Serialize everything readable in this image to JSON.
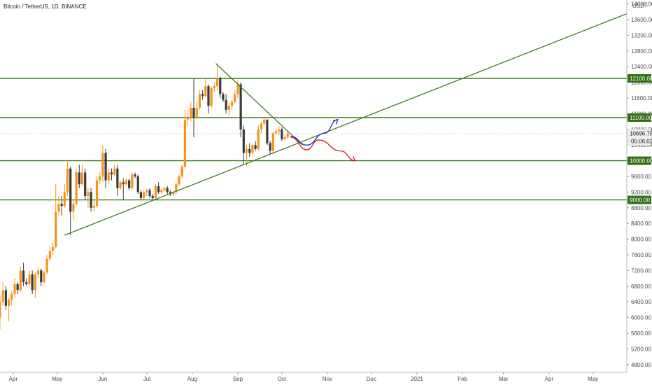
{
  "header": {
    "title": "Bitcoin / TetherUS, 1D, BINANCE"
  },
  "price_axis": {
    "currency": "USDT"
  },
  "colors": {
    "up": "#f7931a",
    "down": "#3a3a3a",
    "line": "#3c7d1c",
    "tag": "#2f6f14",
    "blue": "#1c2fbf",
    "red": "#d01818"
  },
  "chart_data": {
    "type": "candlestick",
    "title": "Bitcoin / TetherUS, 1D, BINANCE",
    "y_unit": "USDT",
    "ylim": [
      4600,
      14100
    ],
    "y_ticks": [
      4800,
      5200,
      5600,
      6000,
      6400,
      6800,
      7200,
      7600,
      8000,
      8400,
      8800,
      9200,
      9600,
      10000,
      10400,
      10800,
      11200,
      11600,
      12000,
      12400,
      12800,
      13200,
      13600,
      14000
    ],
    "x_ticks": [
      "Apr",
      "May",
      "Jun",
      "Jul",
      "Aug",
      "Sep",
      "Oct",
      "Nov",
      "Dec",
      "2021",
      "Feb",
      "Mar",
      "Apr",
      "May"
    ],
    "x_tick_dates": [
      "2020-04-01",
      "2020-05-01",
      "2020-06-01",
      "2020-07-01",
      "2020-08-01",
      "2020-09-01",
      "2020-10-01",
      "2020-11-01",
      "2020-12-01",
      "2021-01-01",
      "2021-02-01",
      "2021-03-01",
      "2021-04-01",
      "2021-05-01"
    ],
    "xlim": [
      "2020-03-23",
      "2021-05-24"
    ],
    "grid": false,
    "last_price": {
      "value": 10696.78,
      "label": "10696.78",
      "countdown": "05:06:02"
    },
    "horizontal_levels": [
      {
        "value": 12100,
        "label": "12100.00"
      },
      {
        "value": 11100,
        "label": "11100.00"
      },
      {
        "value": 10000,
        "label": "10000.00"
      },
      {
        "value": 9000,
        "label": "9000.00"
      }
    ],
    "trendlines": [
      {
        "name": "support",
        "from": [
          "2020-05-06",
          8100
        ],
        "to": [
          "2021-05-24",
          13750
        ]
      },
      {
        "name": "resistance",
        "from": [
          "2020-08-17",
          12480
        ],
        "to": [
          "2020-10-15",
          10400
        ]
      }
    ],
    "scenarios": [
      {
        "name": "bullish",
        "points": [
          [
            "2020-10-07",
            10620
          ],
          [
            "2020-10-18",
            10400
          ],
          [
            "2020-10-30",
            10700
          ],
          [
            "2020-11-08",
            11050
          ]
        ]
      },
      {
        "name": "bearish",
        "points": [
          [
            "2020-10-07",
            10600
          ],
          [
            "2020-10-18",
            10280
          ],
          [
            "2020-10-26",
            10530
          ],
          [
            "2020-11-10",
            10250
          ],
          [
            "2020-11-20",
            10000
          ]
        ]
      }
    ],
    "candles": [
      {
        "d": "2020-03-23",
        "o": 6000,
        "h": 6550,
        "l": 5700,
        "c": 6400
      },
      {
        "d": "2020-03-25",
        "o": 6400,
        "h": 6900,
        "l": 6300,
        "c": 6700
      },
      {
        "d": "2020-03-27",
        "o": 6700,
        "h": 6800,
        "l": 6200,
        "c": 6300
      },
      {
        "d": "2020-03-29",
        "o": 6300,
        "h": 6500,
        "l": 5900,
        "c": 6450
      },
      {
        "d": "2020-03-31",
        "o": 6450,
        "h": 6700,
        "l": 6300,
        "c": 6600
      },
      {
        "d": "2020-04-02",
        "o": 6600,
        "h": 7000,
        "l": 6500,
        "c": 6850
      },
      {
        "d": "2020-04-04",
        "o": 6850,
        "h": 6900,
        "l": 6600,
        "c": 6700
      },
      {
        "d": "2020-04-06",
        "o": 6700,
        "h": 7300,
        "l": 6650,
        "c": 7200
      },
      {
        "d": "2020-04-08",
        "o": 7200,
        "h": 7400,
        "l": 6800,
        "c": 6900
      },
      {
        "d": "2020-04-10",
        "o": 6900,
        "h": 7000,
        "l": 6800,
        "c": 6850
      },
      {
        "d": "2020-04-12",
        "o": 6850,
        "h": 7200,
        "l": 6800,
        "c": 7100
      },
      {
        "d": "2020-04-14",
        "o": 7100,
        "h": 7200,
        "l": 6600,
        "c": 6700
      },
      {
        "d": "2020-04-16",
        "o": 6700,
        "h": 7150,
        "l": 6500,
        "c": 7100
      },
      {
        "d": "2020-04-18",
        "o": 7100,
        "h": 7300,
        "l": 7000,
        "c": 7200
      },
      {
        "d": "2020-04-20",
        "o": 7200,
        "h": 7250,
        "l": 6800,
        "c": 6900
      },
      {
        "d": "2020-04-22",
        "o": 6900,
        "h": 7200,
        "l": 6850,
        "c": 7150
      },
      {
        "d": "2020-04-24",
        "o": 7150,
        "h": 7600,
        "l": 7100,
        "c": 7500
      },
      {
        "d": "2020-04-26",
        "o": 7500,
        "h": 7800,
        "l": 7450,
        "c": 7700
      },
      {
        "d": "2020-04-28",
        "o": 7700,
        "h": 7900,
        "l": 7600,
        "c": 7800
      },
      {
        "d": "2020-04-30",
        "o": 7800,
        "h": 9400,
        "l": 7750,
        "c": 8700
      },
      {
        "d": "2020-05-02",
        "o": 8700,
        "h": 9100,
        "l": 8600,
        "c": 8900
      },
      {
        "d": "2020-05-04",
        "o": 8900,
        "h": 9100,
        "l": 8600,
        "c": 8850
      },
      {
        "d": "2020-05-06",
        "o": 8850,
        "h": 9400,
        "l": 8800,
        "c": 9200
      },
      {
        "d": "2020-05-08",
        "o": 9200,
        "h": 10000,
        "l": 9100,
        "c": 9800
      },
      {
        "d": "2020-05-10",
        "o": 9800,
        "h": 9850,
        "l": 8100,
        "c": 8700
      },
      {
        "d": "2020-05-12",
        "o": 8700,
        "h": 9000,
        "l": 8500,
        "c": 8900
      },
      {
        "d": "2020-05-14",
        "o": 8900,
        "h": 9800,
        "l": 8850,
        "c": 9700
      },
      {
        "d": "2020-05-16",
        "o": 9700,
        "h": 9900,
        "l": 9300,
        "c": 9400
      },
      {
        "d": "2020-05-18",
        "o": 9400,
        "h": 9900,
        "l": 9350,
        "c": 9700
      },
      {
        "d": "2020-05-20",
        "o": 9700,
        "h": 9800,
        "l": 9000,
        "c": 9100
      },
      {
        "d": "2020-05-22",
        "o": 9100,
        "h": 9300,
        "l": 8800,
        "c": 9200
      },
      {
        "d": "2020-05-24",
        "o": 9200,
        "h": 9300,
        "l": 8700,
        "c": 8800
      },
      {
        "d": "2020-05-26",
        "o": 8800,
        "h": 9000,
        "l": 8700,
        "c": 8850
      },
      {
        "d": "2020-05-28",
        "o": 8850,
        "h": 9600,
        "l": 8800,
        "c": 9500
      },
      {
        "d": "2020-05-30",
        "o": 9500,
        "h": 9700,
        "l": 9400,
        "c": 9600
      },
      {
        "d": "2020-06-01",
        "o": 9600,
        "h": 10400,
        "l": 9450,
        "c": 10200
      },
      {
        "d": "2020-06-03",
        "o": 10200,
        "h": 10300,
        "l": 9300,
        "c": 9500
      },
      {
        "d": "2020-06-05",
        "o": 9500,
        "h": 9800,
        "l": 9400,
        "c": 9700
      },
      {
        "d": "2020-06-07",
        "o": 9700,
        "h": 9800,
        "l": 9500,
        "c": 9650
      },
      {
        "d": "2020-06-09",
        "o": 9650,
        "h": 9900,
        "l": 9600,
        "c": 9800
      },
      {
        "d": "2020-06-11",
        "o": 9800,
        "h": 9900,
        "l": 9100,
        "c": 9300
      },
      {
        "d": "2020-06-13",
        "o": 9300,
        "h": 9500,
        "l": 9250,
        "c": 9450
      },
      {
        "d": "2020-06-15",
        "o": 9450,
        "h": 9550,
        "l": 9000,
        "c": 9400
      },
      {
        "d": "2020-06-17",
        "o": 9400,
        "h": 9550,
        "l": 9350,
        "c": 9500
      },
      {
        "d": "2020-06-19",
        "o": 9500,
        "h": 9550,
        "l": 9250,
        "c": 9300
      },
      {
        "d": "2020-06-21",
        "o": 9300,
        "h": 9700,
        "l": 9250,
        "c": 9650
      },
      {
        "d": "2020-06-23",
        "o": 9650,
        "h": 9700,
        "l": 9550,
        "c": 9600
      },
      {
        "d": "2020-06-25",
        "o": 9600,
        "h": 9650,
        "l": 9150,
        "c": 9200
      },
      {
        "d": "2020-06-27",
        "o": 9200,
        "h": 9250,
        "l": 9000,
        "c": 9050
      },
      {
        "d": "2020-06-29",
        "o": 9050,
        "h": 9250,
        "l": 9000,
        "c": 9200
      },
      {
        "d": "2020-07-01",
        "o": 9200,
        "h": 9300,
        "l": 9100,
        "c": 9250
      },
      {
        "d": "2020-07-03",
        "o": 9250,
        "h": 9300,
        "l": 9050,
        "c": 9100
      },
      {
        "d": "2020-07-05",
        "o": 9100,
        "h": 9150,
        "l": 9000,
        "c": 9050
      },
      {
        "d": "2020-07-07",
        "o": 9050,
        "h": 9400,
        "l": 9000,
        "c": 9350
      },
      {
        "d": "2020-07-09",
        "o": 9350,
        "h": 9450,
        "l": 9150,
        "c": 9200
      },
      {
        "d": "2020-07-11",
        "o": 9200,
        "h": 9300,
        "l": 9150,
        "c": 9250
      },
      {
        "d": "2020-07-13",
        "o": 9250,
        "h": 9350,
        "l": 9200,
        "c": 9300
      },
      {
        "d": "2020-07-15",
        "o": 9300,
        "h": 9350,
        "l": 9150,
        "c": 9200
      },
      {
        "d": "2020-07-17",
        "o": 9200,
        "h": 9250,
        "l": 9100,
        "c": 9150
      },
      {
        "d": "2020-07-19",
        "o": 9150,
        "h": 9250,
        "l": 9100,
        "c": 9200
      },
      {
        "d": "2020-07-21",
        "o": 9200,
        "h": 9450,
        "l": 9150,
        "c": 9400
      },
      {
        "d": "2020-07-23",
        "o": 9400,
        "h": 9650,
        "l": 9350,
        "c": 9600
      },
      {
        "d": "2020-07-25",
        "o": 9600,
        "h": 9900,
        "l": 9550,
        "c": 9850
      },
      {
        "d": "2020-07-27",
        "o": 9850,
        "h": 11300,
        "l": 9800,
        "c": 11050
      },
      {
        "d": "2020-07-29",
        "o": 11050,
        "h": 11300,
        "l": 10900,
        "c": 11100
      },
      {
        "d": "2020-07-31",
        "o": 11100,
        "h": 11500,
        "l": 11000,
        "c": 11350
      },
      {
        "d": "2020-08-02",
        "o": 11350,
        "h": 12100,
        "l": 10600,
        "c": 11100
      },
      {
        "d": "2020-08-04",
        "o": 11100,
        "h": 11500,
        "l": 11050,
        "c": 11350
      },
      {
        "d": "2020-08-06",
        "o": 11350,
        "h": 11800,
        "l": 11300,
        "c": 11700
      },
      {
        "d": "2020-08-08",
        "o": 11700,
        "h": 11800,
        "l": 11550,
        "c": 11650
      },
      {
        "d": "2020-08-10",
        "o": 11650,
        "h": 12100,
        "l": 11600,
        "c": 11900
      },
      {
        "d": "2020-08-12",
        "o": 11900,
        "h": 11950,
        "l": 11200,
        "c": 11400
      },
      {
        "d": "2020-08-14",
        "o": 11400,
        "h": 11900,
        "l": 11350,
        "c": 11850
      },
      {
        "d": "2020-08-16",
        "o": 11850,
        "h": 12000,
        "l": 11750,
        "c": 11900
      },
      {
        "d": "2020-08-18",
        "o": 11900,
        "h": 12480,
        "l": 11800,
        "c": 12100
      },
      {
        "d": "2020-08-20",
        "o": 12100,
        "h": 12150,
        "l": 11600,
        "c": 11700
      },
      {
        "d": "2020-08-22",
        "o": 11700,
        "h": 11750,
        "l": 11500,
        "c": 11550
      },
      {
        "d": "2020-08-24",
        "o": 11550,
        "h": 11700,
        "l": 11200,
        "c": 11300
      },
      {
        "d": "2020-08-26",
        "o": 11300,
        "h": 11500,
        "l": 11150,
        "c": 11400
      },
      {
        "d": "2020-08-28",
        "o": 11400,
        "h": 11550,
        "l": 11300,
        "c": 11500
      },
      {
        "d": "2020-08-30",
        "o": 11500,
        "h": 11800,
        "l": 11450,
        "c": 11700
      },
      {
        "d": "2020-09-01",
        "o": 11700,
        "h": 12050,
        "l": 11600,
        "c": 11950
      },
      {
        "d": "2020-09-03",
        "o": 11950,
        "h": 12000,
        "l": 10600,
        "c": 10800
      },
      {
        "d": "2020-09-05",
        "o": 10800,
        "h": 10900,
        "l": 9900,
        "c": 10200
      },
      {
        "d": "2020-09-07",
        "o": 10200,
        "h": 10400,
        "l": 9850,
        "c": 10300
      },
      {
        "d": "2020-09-09",
        "o": 10300,
        "h": 10450,
        "l": 10100,
        "c": 10200
      },
      {
        "d": "2020-09-11",
        "o": 10200,
        "h": 10450,
        "l": 10150,
        "c": 10400
      },
      {
        "d": "2020-09-13",
        "o": 10400,
        "h": 10500,
        "l": 10250,
        "c": 10300
      },
      {
        "d": "2020-09-15",
        "o": 10300,
        "h": 10900,
        "l": 10250,
        "c": 10800
      },
      {
        "d": "2020-09-17",
        "o": 10800,
        "h": 11000,
        "l": 10700,
        "c": 10950
      },
      {
        "d": "2020-09-19",
        "o": 10950,
        "h": 11100,
        "l": 10900,
        "c": 11050
      },
      {
        "d": "2020-09-21",
        "o": 11050,
        "h": 11050,
        "l": 10400,
        "c": 10450
      },
      {
        "d": "2020-09-23",
        "o": 10450,
        "h": 10500,
        "l": 10150,
        "c": 10250
      },
      {
        "d": "2020-09-25",
        "o": 10250,
        "h": 10750,
        "l": 10200,
        "c": 10700
      },
      {
        "d": "2020-09-27",
        "o": 10700,
        "h": 10800,
        "l": 10650,
        "c": 10750
      },
      {
        "d": "2020-09-29",
        "o": 10750,
        "h": 10900,
        "l": 10650,
        "c": 10800
      },
      {
        "d": "2020-10-01",
        "o": 10800,
        "h": 10850,
        "l": 10500,
        "c": 10550
      },
      {
        "d": "2020-10-03",
        "o": 10550,
        "h": 10650,
        "l": 10500,
        "c": 10600
      },
      {
        "d": "2020-10-05",
        "o": 10600,
        "h": 10750,
        "l": 10550,
        "c": 10697
      }
    ]
  }
}
